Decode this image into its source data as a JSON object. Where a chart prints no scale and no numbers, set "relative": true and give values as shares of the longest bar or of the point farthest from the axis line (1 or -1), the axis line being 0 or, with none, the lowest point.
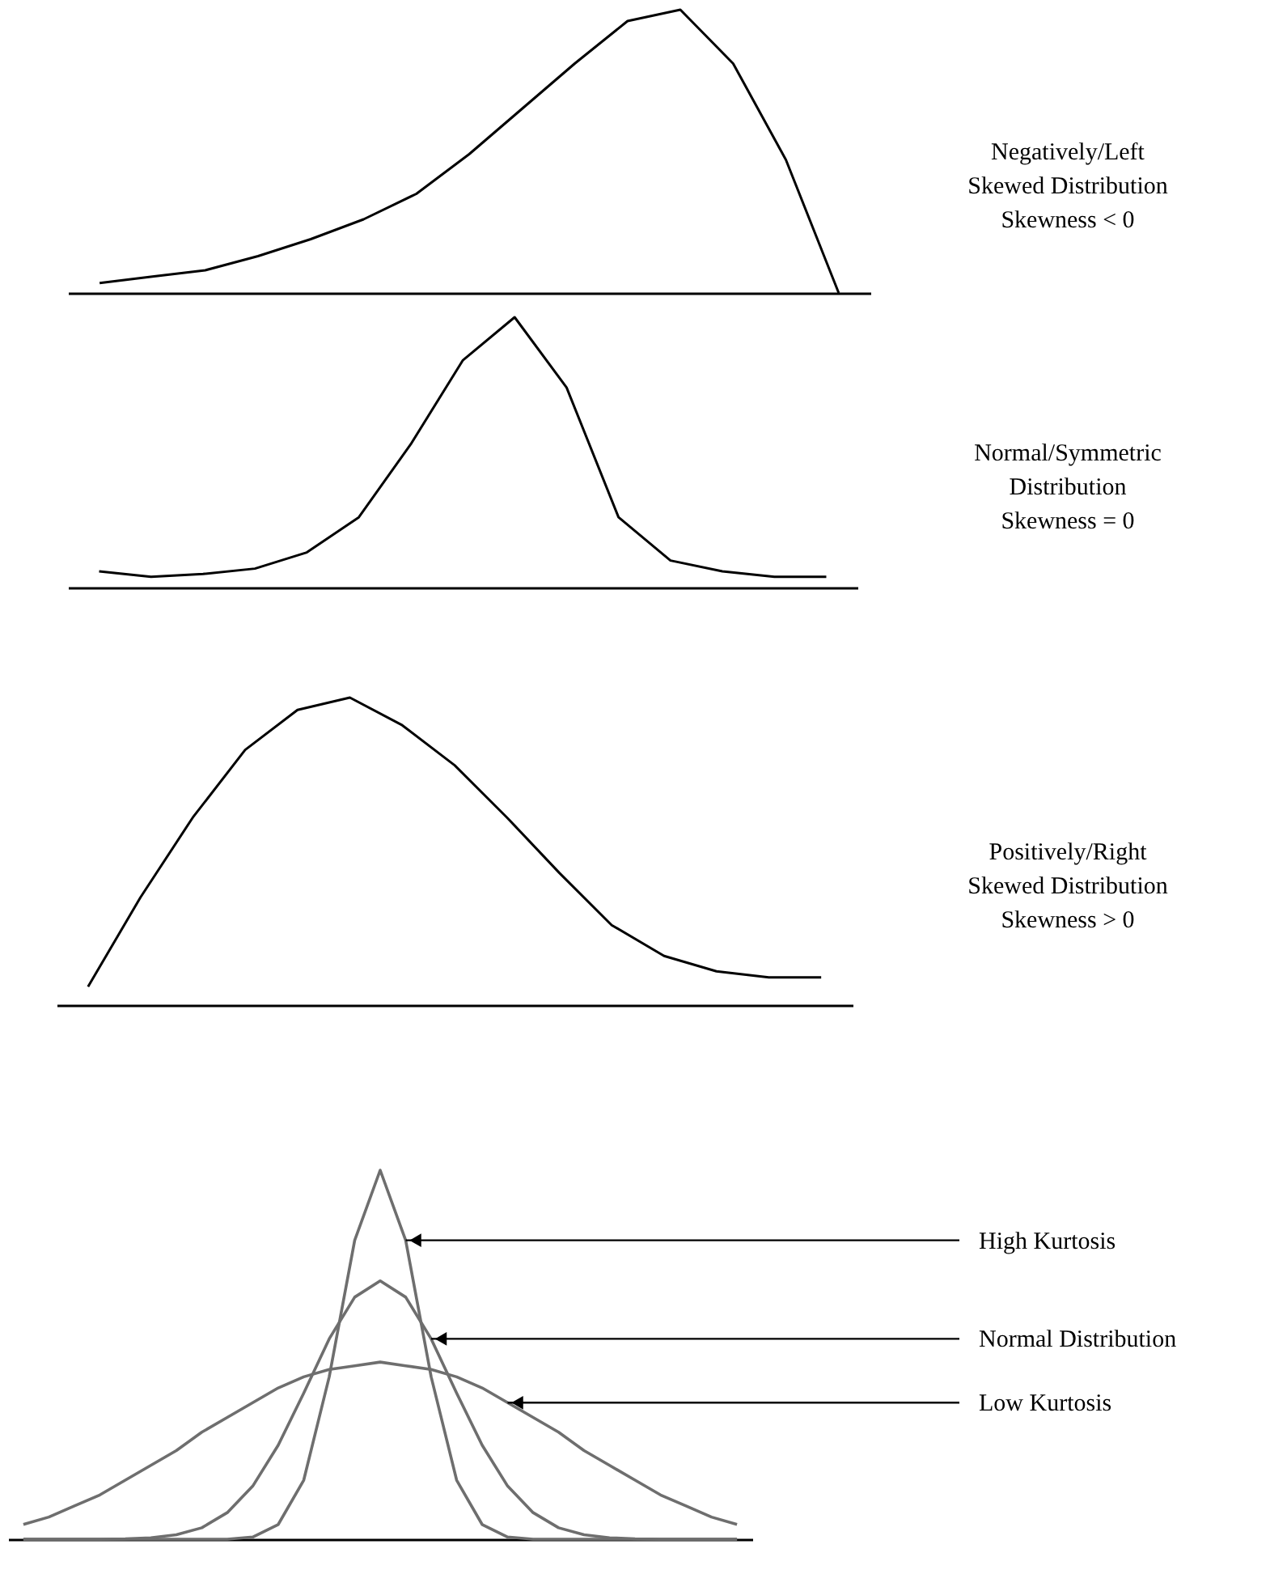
{
  "chart_data": [
    {
      "type": "line",
      "relative": true,
      "categories": [
        null,
        null,
        null,
        null,
        null,
        null,
        null,
        null,
        null,
        null,
        null,
        null,
        null,
        null,
        null
      ],
      "annotations": [
        "Negatively/Left",
        "Skewed Distribution",
        "Skewness < 0"
      ],
      "series": [
        {
          "color": "#000000",
          "values": [
            0.035,
            0.058,
            0.08,
            0.13,
            0.19,
            0.26,
            0.35,
            0.49,
            0.65,
            0.81,
            0.96,
            1.0,
            0.81,
            0.47,
            0.0
          ]
        }
      ]
    },
    {
      "type": "line",
      "relative": true,
      "categories": [
        null,
        null,
        null,
        null,
        null,
        null,
        null,
        null,
        null,
        null,
        null,
        null,
        null,
        null,
        null
      ],
      "annotations": [
        "Normal/Symmetric",
        "Distribution",
        "Skewness = 0"
      ],
      "series": [
        {
          "color": "#000000",
          "values": [
            0.06,
            0.04,
            0.05,
            0.07,
            0.13,
            0.26,
            0.53,
            0.84,
            1.0,
            0.74,
            0.26,
            0.1,
            0.06,
            0.04,
            0.04
          ]
        }
      ]
    },
    {
      "type": "line",
      "relative": true,
      "categories": [
        null,
        null,
        null,
        null,
        null,
        null,
        null,
        null,
        null,
        null,
        null,
        null,
        null,
        null,
        null
      ],
      "annotations": [
        "Positively/Right",
        "Skewed Distribution",
        "Skewness > 0"
      ],
      "series": [
        {
          "color": "#000000",
          "values": [
            0.06,
            0.35,
            0.61,
            0.83,
            0.96,
            1.0,
            0.91,
            0.78,
            0.61,
            0.43,
            0.26,
            0.16,
            0.11,
            0.09,
            0.09
          ]
        }
      ]
    },
    {
      "type": "line",
      "relative": true,
      "categories": [
        null,
        null,
        null,
        null,
        null,
        null,
        null,
        null,
        null,
        null,
        null,
        null,
        null,
        null,
        null,
        null,
        null,
        null,
        null,
        null,
        null,
        null,
        null,
        null,
        null,
        null,
        null,
        null,
        null
      ],
      "series": [
        {
          "name": "High Kurtosis",
          "color": "#6e6e6e",
          "values": [
            0,
            0,
            0,
            0,
            0,
            0,
            0,
            0,
            0,
            0.006,
            0.04,
            0.16,
            0.44,
            0.81,
            1.0,
            0.81,
            0.44,
            0.16,
            0.04,
            0.006,
            0,
            0,
            0,
            0,
            0,
            0,
            0,
            0,
            0
          ]
        },
        {
          "name": "Normal Distribution",
          "color": "#6e6e6e",
          "values": [
            0,
            0,
            0,
            0,
            0.001,
            0.004,
            0.012,
            0.031,
            0.072,
            0.144,
            0.255,
            0.396,
            0.543,
            0.656,
            0.7,
            0.656,
            0.543,
            0.396,
            0.255,
            0.144,
            0.072,
            0.031,
            0.012,
            0.004,
            0.001,
            0,
            0,
            0,
            0
          ]
        },
        {
          "name": "Low Kurtosis",
          "color": "#6e6e6e",
          "values": [
            0.04,
            0.06,
            0.09,
            0.12,
            0.16,
            0.2,
            0.24,
            0.29,
            0.33,
            0.37,
            0.41,
            0.44,
            0.46,
            0.47,
            0.48,
            0.47,
            0.46,
            0.44,
            0.41,
            0.37,
            0.33,
            0.29,
            0.24,
            0.2,
            0.16,
            0.12,
            0.09,
            0.06,
            0.04
          ]
        }
      ]
    }
  ]
}
